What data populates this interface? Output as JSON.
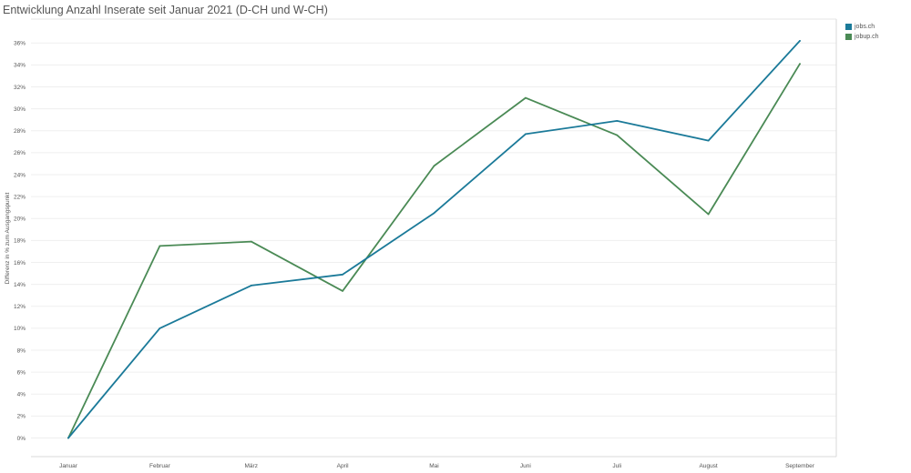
{
  "title": "Entwicklung Anzahl Inserate seit Januar 2021 (D-CH und W-CH)",
  "chart_data": {
    "type": "line",
    "title": "Entwicklung Anzahl Inserate seit Januar 2021 (D-CH und W-CH)",
    "xlabel": "",
    "ylabel": "Differenz in % zum Ausgangspunkt",
    "categories": [
      "Januar",
      "Februar",
      "März",
      "April",
      "Mai",
      "Juni",
      "Juli",
      "August",
      "September"
    ],
    "yticks": [
      "0%",
      "2%",
      "4%",
      "6%",
      "8%",
      "10%",
      "12%",
      "14%",
      "16%",
      "18%",
      "20%",
      "22%",
      "24%",
      "26%",
      "28%",
      "30%",
      "32%",
      "34%",
      "36%"
    ],
    "ylim": [
      0,
      37
    ],
    "grid": true,
    "legend_position": "top-right",
    "series": [
      {
        "name": "jobs.ch",
        "color": "#1b7a99",
        "values": [
          0,
          10.0,
          13.9,
          14.9,
          20.5,
          27.7,
          28.9,
          27.1,
          36.2
        ]
      },
      {
        "name": "jobup.ch",
        "color": "#4a8a55",
        "values": [
          0,
          17.5,
          17.9,
          13.4,
          24.8,
          31.0,
          27.6,
          20.4,
          34.1
        ]
      }
    ]
  }
}
